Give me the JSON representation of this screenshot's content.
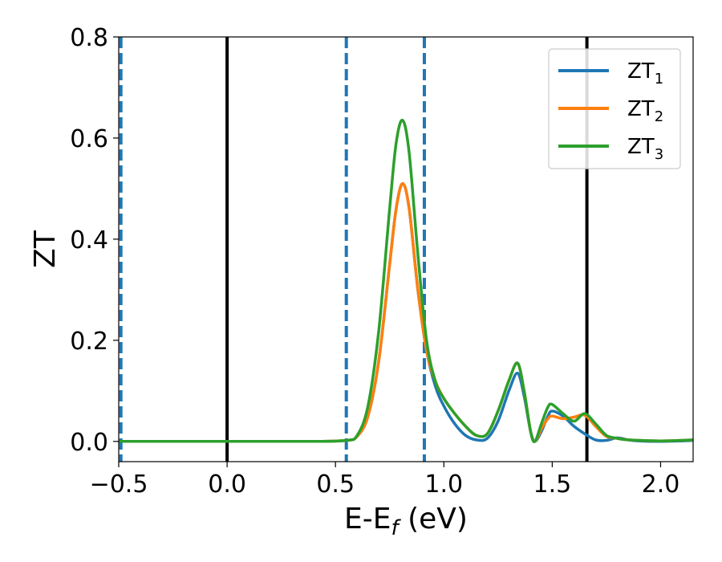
{
  "chart_data": {
    "type": "line",
    "xlabel": "E-E",
    "xlabel_sub": "f",
    "xlabel_unit": " (eV)",
    "ylabel": "ZT",
    "xlim": [
      -0.5,
      2.15
    ],
    "ylim": [
      -0.04,
      0.8
    ],
    "xticks": [
      -0.5,
      0.0,
      0.5,
      1.0,
      1.5,
      2.0
    ],
    "xtick_labels": [
      "−0.5",
      "0.0",
      "0.5",
      "1.0",
      "1.5",
      "2.0"
    ],
    "yticks": [
      0.0,
      0.2,
      0.4,
      0.6,
      0.8
    ],
    "ytick_labels": [
      "0.0",
      "0.2",
      "0.4",
      "0.6",
      "0.8"
    ],
    "grid": false,
    "legend_position": "top-right",
    "vlines": [
      {
        "x": -0.49,
        "style": "dashed",
        "color": "#1f77b4"
      },
      {
        "x": 0.0,
        "style": "solid",
        "color": "#000000"
      },
      {
        "x": 0.55,
        "style": "dashed",
        "color": "#1f77b4"
      },
      {
        "x": 0.91,
        "style": "dashed",
        "color": "#1f77b4"
      },
      {
        "x": 1.66,
        "style": "solid",
        "color": "#000000"
      }
    ],
    "series": [
      {
        "name": "ZT",
        "sub": "1",
        "color": "#1f77b4",
        "x": [
          -0.5,
          0.0,
          0.4,
          0.55,
          0.6,
          0.65,
          0.7,
          0.75,
          0.78,
          0.81,
          0.84,
          0.88,
          0.92,
          0.96,
          1.0,
          1.05,
          1.1,
          1.15,
          1.2,
          1.25,
          1.3,
          1.34,
          1.37,
          1.4,
          1.42,
          1.45,
          1.48,
          1.5,
          1.55,
          1.6,
          1.65,
          1.7,
          1.75,
          1.8,
          1.85,
          1.9,
          2.0,
          2.1,
          2.15
        ],
        "y": [
          0.0,
          0.0,
          0.0,
          0.002,
          0.01,
          0.05,
          0.16,
          0.35,
          0.46,
          0.51,
          0.46,
          0.3,
          0.18,
          0.11,
          0.07,
          0.035,
          0.012,
          0.003,
          0.006,
          0.04,
          0.1,
          0.135,
          0.09,
          0.02,
          0.0,
          0.02,
          0.05,
          0.06,
          0.05,
          0.03,
          0.015,
          0.003,
          0.002,
          0.007,
          0.003,
          0.001,
          0.0,
          0.001,
          0.002
        ]
      },
      {
        "name": "ZT",
        "sub": "2",
        "color": "#ff7f0e",
        "x": [
          -0.5,
          0.0,
          0.4,
          0.55,
          0.6,
          0.65,
          0.7,
          0.75,
          0.78,
          0.81,
          0.84,
          0.88,
          0.92,
          0.96,
          1.0,
          1.05,
          1.1,
          1.15,
          1.2,
          1.25,
          1.3,
          1.34,
          1.37,
          1.4,
          1.42,
          1.45,
          1.48,
          1.5,
          1.55,
          1.6,
          1.65,
          1.7,
          1.75,
          1.8,
          1.85,
          1.9,
          2.0,
          2.1,
          2.15
        ],
        "y": [
          0.0,
          0.0,
          0.0,
          0.002,
          0.01,
          0.05,
          0.16,
          0.35,
          0.46,
          0.51,
          0.46,
          0.3,
          0.18,
          0.12,
          0.085,
          0.055,
          0.03,
          0.012,
          0.015,
          0.06,
          0.12,
          0.155,
          0.1,
          0.02,
          0.0,
          0.025,
          0.045,
          0.05,
          0.045,
          0.048,
          0.052,
          0.03,
          0.01,
          0.006,
          0.003,
          0.002,
          0.001,
          0.002,
          0.003
        ]
      },
      {
        "name": "ZT",
        "sub": "3",
        "color": "#2ca02c",
        "x": [
          -0.5,
          0.0,
          0.4,
          0.55,
          0.6,
          0.65,
          0.7,
          0.75,
          0.78,
          0.81,
          0.84,
          0.88,
          0.92,
          0.96,
          1.0,
          1.05,
          1.1,
          1.15,
          1.2,
          1.25,
          1.3,
          1.34,
          1.37,
          1.4,
          1.42,
          1.45,
          1.48,
          1.5,
          1.55,
          1.6,
          1.65,
          1.7,
          1.75,
          1.8,
          1.85,
          1.9,
          2.0,
          2.1,
          2.15
        ],
        "y": [
          0.0,
          0.0,
          0.0,
          0.002,
          0.012,
          0.07,
          0.22,
          0.46,
          0.59,
          0.635,
          0.57,
          0.37,
          0.2,
          0.12,
          0.085,
          0.055,
          0.03,
          0.012,
          0.015,
          0.06,
          0.12,
          0.155,
          0.1,
          0.02,
          0.0,
          0.035,
          0.068,
          0.073,
          0.055,
          0.04,
          0.055,
          0.035,
          0.012,
          0.006,
          0.003,
          0.002,
          0.001,
          0.002,
          0.003
        ]
      }
    ]
  }
}
